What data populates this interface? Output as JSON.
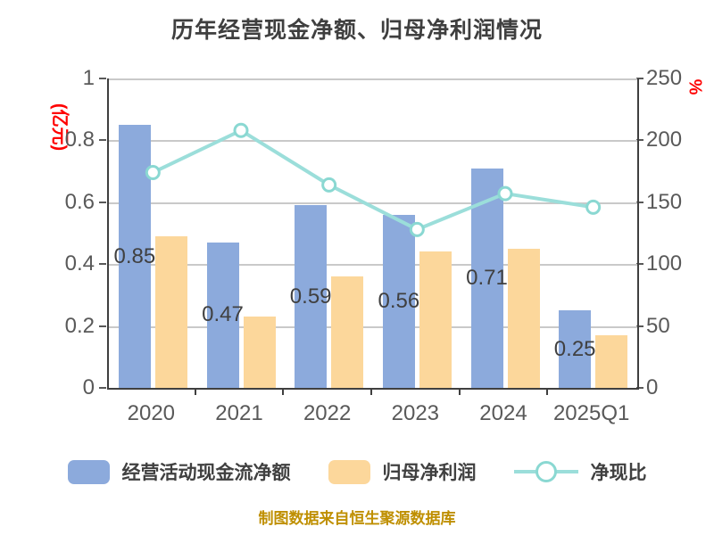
{
  "title": "历年经营现金净额、归母净利润情况",
  "footer": {
    "note": "制图数据来自恒生聚源数据库"
  },
  "colors": {
    "cash_bar": "#8caadc",
    "profit_bar": "#fcd79b",
    "ratio_line": "#9bdeda",
    "marker_ring": "#8ad8d2",
    "grid": "#c9c9c9",
    "axis": "#3f3f3f",
    "tick_text": "#595959",
    "unit_text": "#ff0000",
    "footer_text": "#bf8f00"
  },
  "chart_data": {
    "type": "bar+line",
    "title": "历年经营现金净额、归母净利润情况",
    "categories": [
      "2020",
      "2021",
      "2022",
      "2023",
      "2024",
      "2025Q1"
    ],
    "series": [
      {
        "name": "经营活动现金流净额",
        "type": "bar",
        "axis": "left",
        "color": "#8caadc",
        "values": [
          0.85,
          0.47,
          0.59,
          0.56,
          0.71,
          0.25
        ],
        "labels": [
          "0.85",
          "0.47",
          "0.59",
          "0.56",
          "0.71",
          "0.25"
        ]
      },
      {
        "name": "归母净利润",
        "type": "bar",
        "axis": "left",
        "color": "#fcd79b",
        "values": [
          0.49,
          0.23,
          0.36,
          0.44,
          0.45,
          0.17
        ]
      },
      {
        "name": "净现比",
        "type": "line",
        "axis": "right",
        "color": "#9bdeda",
        "values": [
          174,
          208,
          164,
          128,
          157,
          146
        ]
      }
    ],
    "y_left": {
      "unit": "(亿元)",
      "min": 0,
      "max": 1,
      "ticks": [
        "1",
        "0.8",
        "0.6",
        "0.4",
        "0.2",
        "0"
      ]
    },
    "y_right": {
      "unit": "%",
      "min": 0,
      "max": 250,
      "ticks": [
        "250",
        "200",
        "150",
        "100",
        "50",
        "0"
      ]
    },
    "grid": true,
    "legend_position": "bottom",
    "legend": [
      "经营活动现金流净额",
      "归母净利润",
      "净现比"
    ]
  }
}
